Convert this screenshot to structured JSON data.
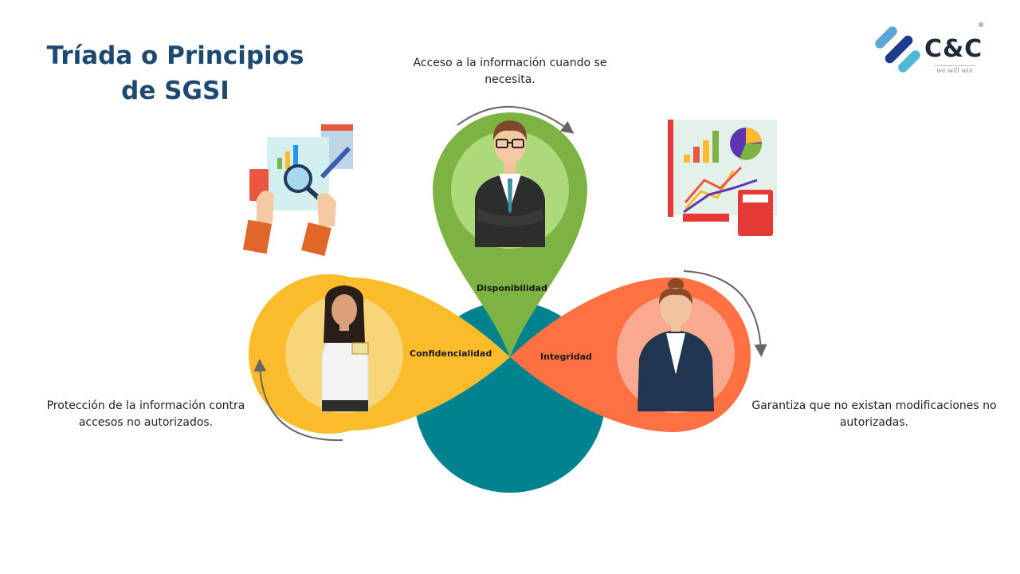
{
  "title": {
    "line1": "Tríada o Principios",
    "line2": "de SGSI"
  },
  "logo": {
    "text": "C&C",
    "tagline": "we will win",
    "registered": "®"
  },
  "principles": {
    "availability": {
      "label": "Disponibilidad",
      "description": "Acceso a la información cuando se necesita.",
      "color": "#7cb342"
    },
    "confidentiality": {
      "label": "Confidencialidad",
      "description": "Protección de la información contra accesos no autorizados.",
      "color": "#fbbc2c"
    },
    "integrity": {
      "label": "Integridad",
      "description": "Garantiza que no existan modificaciones no autorizadas.",
      "color": "#ff7043"
    }
  },
  "center_color": "#00838f",
  "title_color": "#1d4870"
}
